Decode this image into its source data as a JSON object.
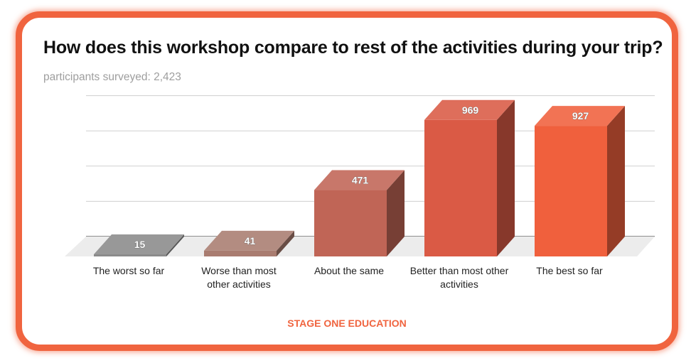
{
  "header": {
    "title": "How does this workshop compare to rest of the activities during your trip?",
    "subtitle": "participants surveyed: 2,423"
  },
  "footer": {
    "brand": "STAGE ONE EDUCATION"
  },
  "chart_data": {
    "type": "bar",
    "title": "How does this workshop compare to rest of the activities during your trip?",
    "subtitle": "participants surveyed: 2,423",
    "categories": [
      "The worst so far",
      "Worse than most other activities",
      "About the same",
      "Better than most other activities",
      "The best so far"
    ],
    "category_lines": [
      [
        "The worst so far"
      ],
      [
        "Worse than most",
        "other activities"
      ],
      [
        "About the same"
      ],
      [
        "Better than most other",
        "activities"
      ],
      [
        "The best so far"
      ]
    ],
    "values": [
      15,
      41,
      471,
      969,
      927
    ],
    "colors": [
      "#8a8a8a",
      "#a97c70",
      "#c06556",
      "#da5a45",
      "#f0603d"
    ],
    "ylim": [
      0,
      1000
    ],
    "grid": true,
    "legend": "none",
    "data_labels": true
  }
}
